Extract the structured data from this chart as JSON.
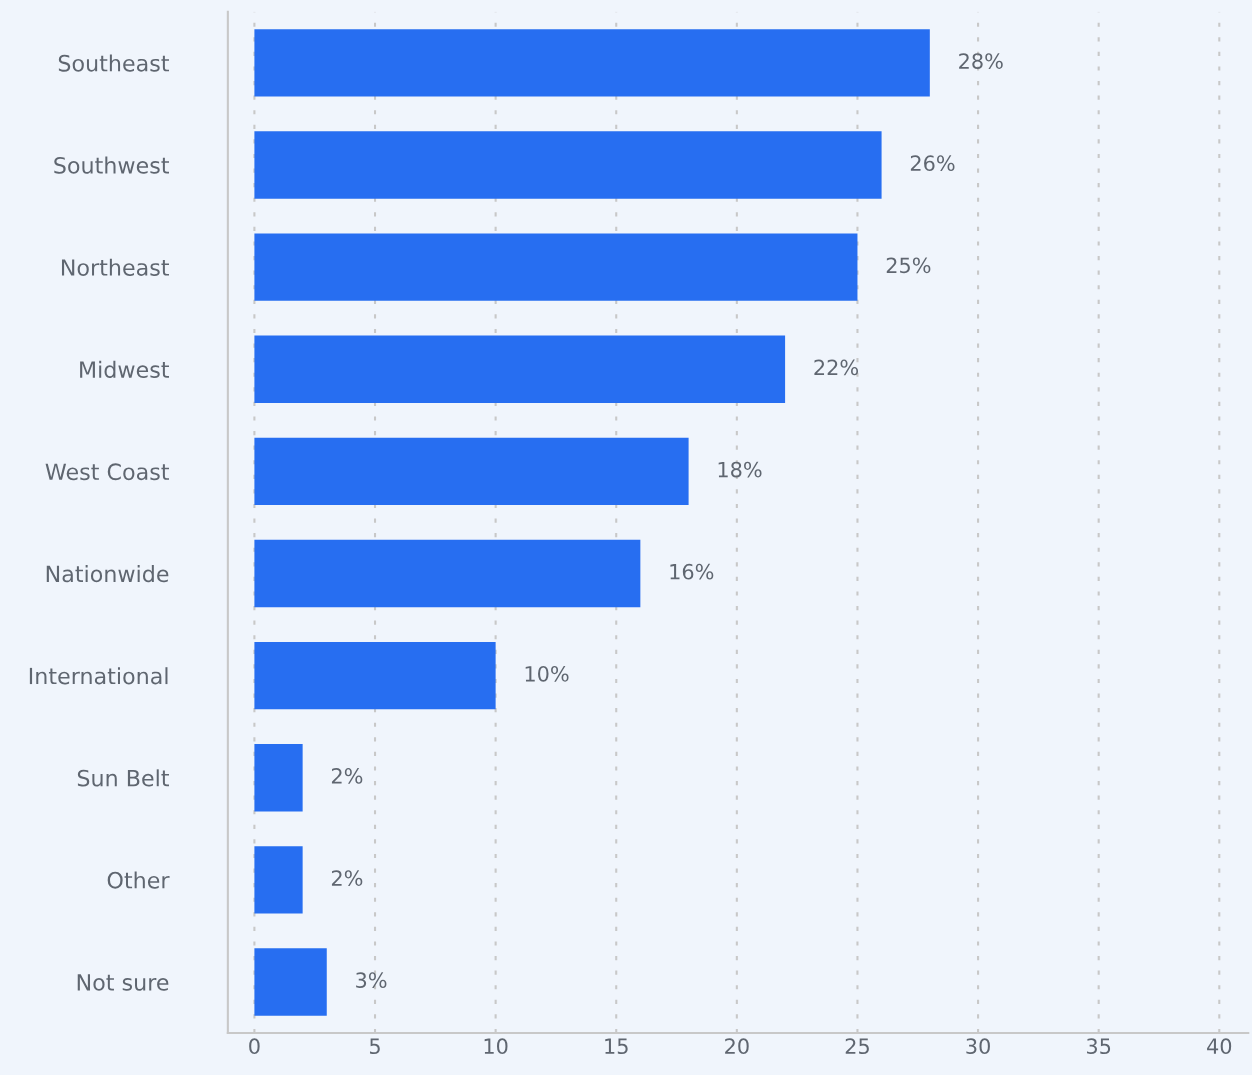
{
  "chart_data": {
    "type": "bar",
    "orientation": "horizontal",
    "categories": [
      "Southeast",
      "Southwest",
      "Northeast",
      "Midwest",
      "West Coast",
      "Nationwide",
      "International",
      "Sun Belt",
      "Other",
      "Not sure"
    ],
    "values": [
      28,
      26,
      25,
      22,
      18,
      16,
      10,
      2,
      2,
      3
    ],
    "value_labels": [
      "28%",
      "26%",
      "25%",
      "22%",
      "18%",
      "16%",
      "10%",
      "2%",
      "2%",
      "3%"
    ],
    "color": "#276ef1",
    "xlim": [
      -1.1,
      41.2
    ],
    "xticks": [
      0,
      5,
      10,
      15,
      20,
      25,
      30,
      35,
      40
    ],
    "grid": "x",
    "legend": false
  }
}
